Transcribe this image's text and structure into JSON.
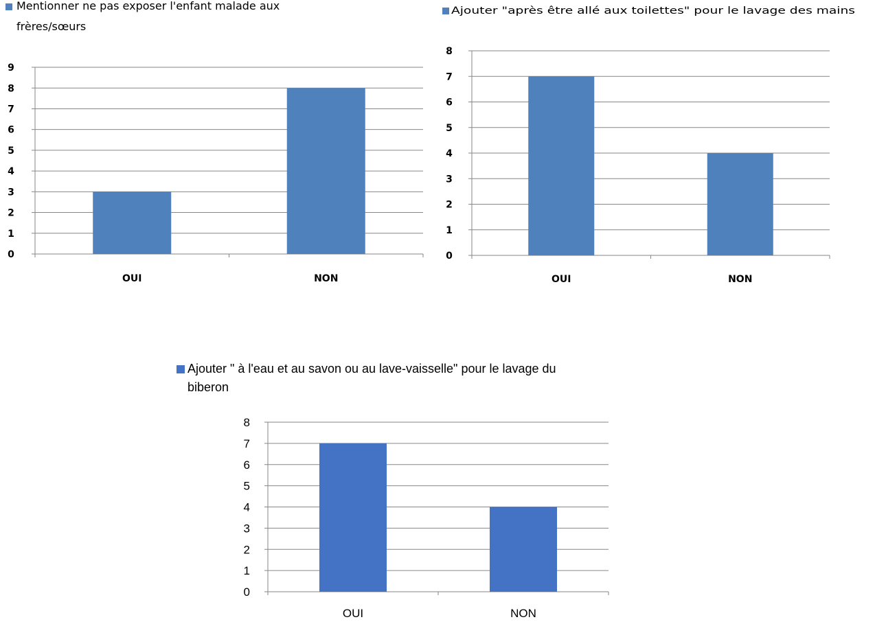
{
  "chart_data": [
    {
      "type": "bar",
      "categories": [
        "OUI",
        "NON"
      ],
      "series": [
        {
          "name": "Mentionner ne pas exposer l'enfant malade aux frères/sœurs",
          "values": [
            3,
            8
          ]
        }
      ],
      "legend_lines": [
        "Mentionner ne pas exposer l'enfant malade aux",
        "frères/sœurs"
      ],
      "yticks": [
        "0",
        "1",
        "2",
        "3",
        "4",
        "5",
        "6",
        "7",
        "8",
        "9"
      ],
      "ylim": [
        0,
        9
      ],
      "grid": true,
      "legend_position": "top-left",
      "bar_color": "#4F81BD"
    },
    {
      "type": "bar",
      "categories": [
        "OUI",
        "NON"
      ],
      "series": [
        {
          "name": "Ajouter \"après être allé aux toilettes\"  pour le lavage des mains",
          "values": [
            7,
            4
          ]
        }
      ],
      "legend_lines": [
        "Ajouter \"après être allé aux toilettes\"  pour le lavage des mains"
      ],
      "yticks": [
        "0",
        "1",
        "2",
        "3",
        "4",
        "5",
        "6",
        "7",
        "8"
      ],
      "ylim": [
        0,
        8
      ],
      "grid": true,
      "legend_position": "top",
      "bar_color": "#4F81BD"
    },
    {
      "type": "bar",
      "categories": [
        "OUI",
        "NON"
      ],
      "series": [
        {
          "name": "Ajouter \" à l'eau et au savon ou au lave-vaisselle\" pour le lavage du biberon",
          "values": [
            7,
            4
          ]
        }
      ],
      "legend_lines": [
        "Ajouter \" à l'eau et au savon ou au lave-vaisselle\" pour le lavage du",
        "biberon"
      ],
      "yticks": [
        "0",
        "1",
        "2",
        "3",
        "4",
        "5",
        "6",
        "7",
        "8"
      ],
      "ylim": [
        0,
        8
      ],
      "grid": true,
      "legend_position": "top",
      "bar_color": "#4472C4"
    }
  ]
}
